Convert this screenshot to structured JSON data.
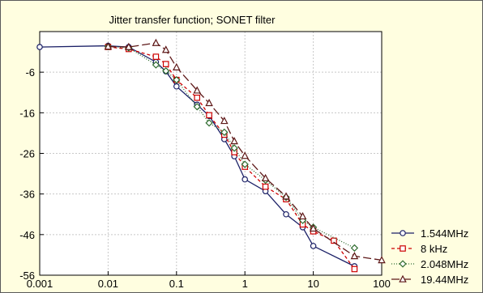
{
  "chart_data": {
    "type": "line",
    "title": "Jitter transfer function; SONET filter",
    "xlabel": "",
    "ylabel": "",
    "x_scale": "log",
    "xlim": [
      0.001,
      100
    ],
    "ylim": [
      -56,
      4
    ],
    "x_ticks": [
      "0.001",
      "0.01",
      "0.1",
      "1",
      "10",
      "100"
    ],
    "x_tick_values": [
      0.001,
      0.01,
      0.1,
      1,
      10,
      100
    ],
    "y_ticks": [
      "-6",
      "-16",
      "-26",
      "-36",
      "-46",
      "-56"
    ],
    "y_tick_values": [
      -6,
      -16,
      -26,
      -36,
      -46,
      -56
    ],
    "grid": true,
    "legend_position": "bottom-right-outside",
    "background_color": "#fffee0",
    "series": [
      {
        "name": "1.544MHz",
        "color": "#1a1f66",
        "dash": "solid",
        "marker": "circle",
        "points": [
          [
            0.001,
            0.2
          ],
          [
            0.01,
            0.5
          ],
          [
            0.02,
            0.2
          ],
          [
            0.05,
            -3.5
          ],
          [
            0.07,
            -5.8
          ],
          [
            0.1,
            -9.5
          ],
          [
            0.2,
            -14
          ],
          [
            0.3,
            -16.8
          ],
          [
            0.5,
            -22.5
          ],
          [
            0.7,
            -26.7
          ],
          [
            1,
            -32.4
          ],
          [
            2,
            -35.3
          ],
          [
            4,
            -41
          ],
          [
            7,
            -44.2
          ],
          [
            10,
            -48.8
          ],
          [
            40,
            -53.8
          ]
        ]
      },
      {
        "name": "8 kHz",
        "color": "#cc0000",
        "dash": "4,3",
        "marker": "square",
        "points": [
          [
            0.01,
            0.2
          ],
          [
            0.02,
            -0.3
          ],
          [
            0.05,
            -2.2
          ],
          [
            0.07,
            -4
          ],
          [
            0.1,
            -7.9
          ],
          [
            0.2,
            -12.3
          ],
          [
            0.3,
            -16.6
          ],
          [
            0.5,
            -21.4
          ],
          [
            0.7,
            -25.7
          ],
          [
            1,
            -29.3
          ],
          [
            2,
            -34.2
          ],
          [
            4,
            -37.3
          ],
          [
            7,
            -43.5
          ],
          [
            10,
            -45.2
          ],
          [
            20,
            -47.5
          ],
          [
            40,
            -54.5
          ]
        ]
      },
      {
        "name": "2.048MHz",
        "color": "#2e6b2e",
        "dash": "1,2",
        "marker": "diamond",
        "points": [
          [
            0.01,
            0.3
          ],
          [
            0.02,
            0
          ],
          [
            0.05,
            -4.2
          ],
          [
            0.07,
            -5.7
          ],
          [
            0.1,
            -7.9
          ],
          [
            0.2,
            -14.5
          ],
          [
            0.3,
            -18.5
          ],
          [
            0.5,
            -20.8
          ],
          [
            0.7,
            -24.7
          ],
          [
            1,
            -28.7
          ],
          [
            2,
            -32.6
          ],
          [
            4,
            -36.8
          ],
          [
            7,
            -42.5
          ],
          [
            10,
            -44.2
          ],
          [
            40,
            -49.3
          ]
        ]
      },
      {
        "name": "19.44MHz",
        "color": "#5e1818",
        "dash": "10,4",
        "marker": "triangle",
        "points": [
          [
            0.01,
            0.3
          ],
          [
            0.02,
            0.2
          ],
          [
            0.05,
            1.2
          ],
          [
            0.07,
            -0.5
          ],
          [
            0.1,
            -4.8
          ],
          [
            0.2,
            -10.5
          ],
          [
            0.3,
            -13.6
          ],
          [
            0.5,
            -18
          ],
          [
            0.7,
            -23
          ],
          [
            1,
            -26.6
          ],
          [
            2,
            -32.1
          ],
          [
            4,
            -36.6
          ],
          [
            7,
            -41.5
          ],
          [
            10,
            -44.5
          ],
          [
            40,
            -51.3
          ],
          [
            100,
            -52.3
          ]
        ]
      }
    ]
  }
}
